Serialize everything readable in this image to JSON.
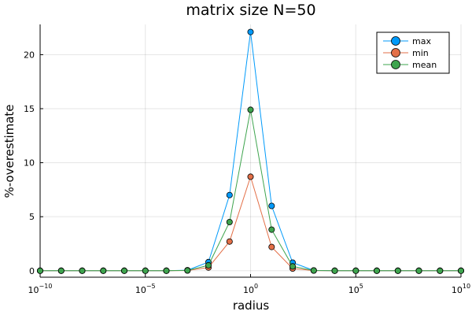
{
  "chart_data": {
    "type": "line",
    "title": "matrix size N=50",
    "xlabel": "radius",
    "ylabel": "%-overestimate",
    "xscale": "log10",
    "xlim": [
      1e-10,
      10000000000.0
    ],
    "ylim": [
      -0.6,
      22.8
    ],
    "x_ticks": [
      {
        "value": 1e-10,
        "base": "10",
        "exp": "−10"
      },
      {
        "value": 1e-05,
        "base": "10",
        "exp": "−5"
      },
      {
        "value": 1,
        "base": "10",
        "exp": "0"
      },
      {
        "value": 100000.0,
        "base": "10",
        "exp": "5"
      },
      {
        "value": 10000000000.0,
        "base": "10",
        "exp": "10"
      }
    ],
    "y_ticks": [
      "0",
      "5",
      "10",
      "15",
      "20"
    ],
    "grid": true,
    "legend_position": "top-right",
    "x": [
      1e-10,
      1e-09,
      1e-08,
      1e-07,
      1e-06,
      1e-05,
      0.0001,
      0.001,
      0.01,
      0.1,
      1,
      10.0,
      100.0,
      1000.0,
      10000.0,
      100000.0,
      1000000.0,
      10000000.0,
      100000000.0,
      1000000000.0,
      10000000000.0
    ],
    "series": [
      {
        "name": "max",
        "color": "#009AFA",
        "values": [
          0,
          0,
          0,
          0,
          0,
          0,
          0,
          0.05,
          0.8,
          7.0,
          22.1,
          6.0,
          0.75,
          0.03,
          0,
          0,
          0,
          0,
          0,
          0,
          0
        ]
      },
      {
        "name": "min",
        "color": "#E36F47",
        "values": [
          0,
          0,
          0,
          0,
          0,
          0,
          0,
          0.02,
          0.3,
          2.7,
          8.7,
          2.2,
          0.2,
          0.01,
          0,
          0,
          0,
          0,
          0,
          0,
          0
        ]
      },
      {
        "name": "mean",
        "color": "#3EA44E",
        "values": [
          0,
          0,
          0,
          0,
          0,
          0,
          0,
          0.03,
          0.5,
          4.5,
          14.9,
          3.8,
          0.4,
          0.02,
          0,
          0,
          0,
          0,
          0,
          0,
          0
        ]
      }
    ]
  }
}
